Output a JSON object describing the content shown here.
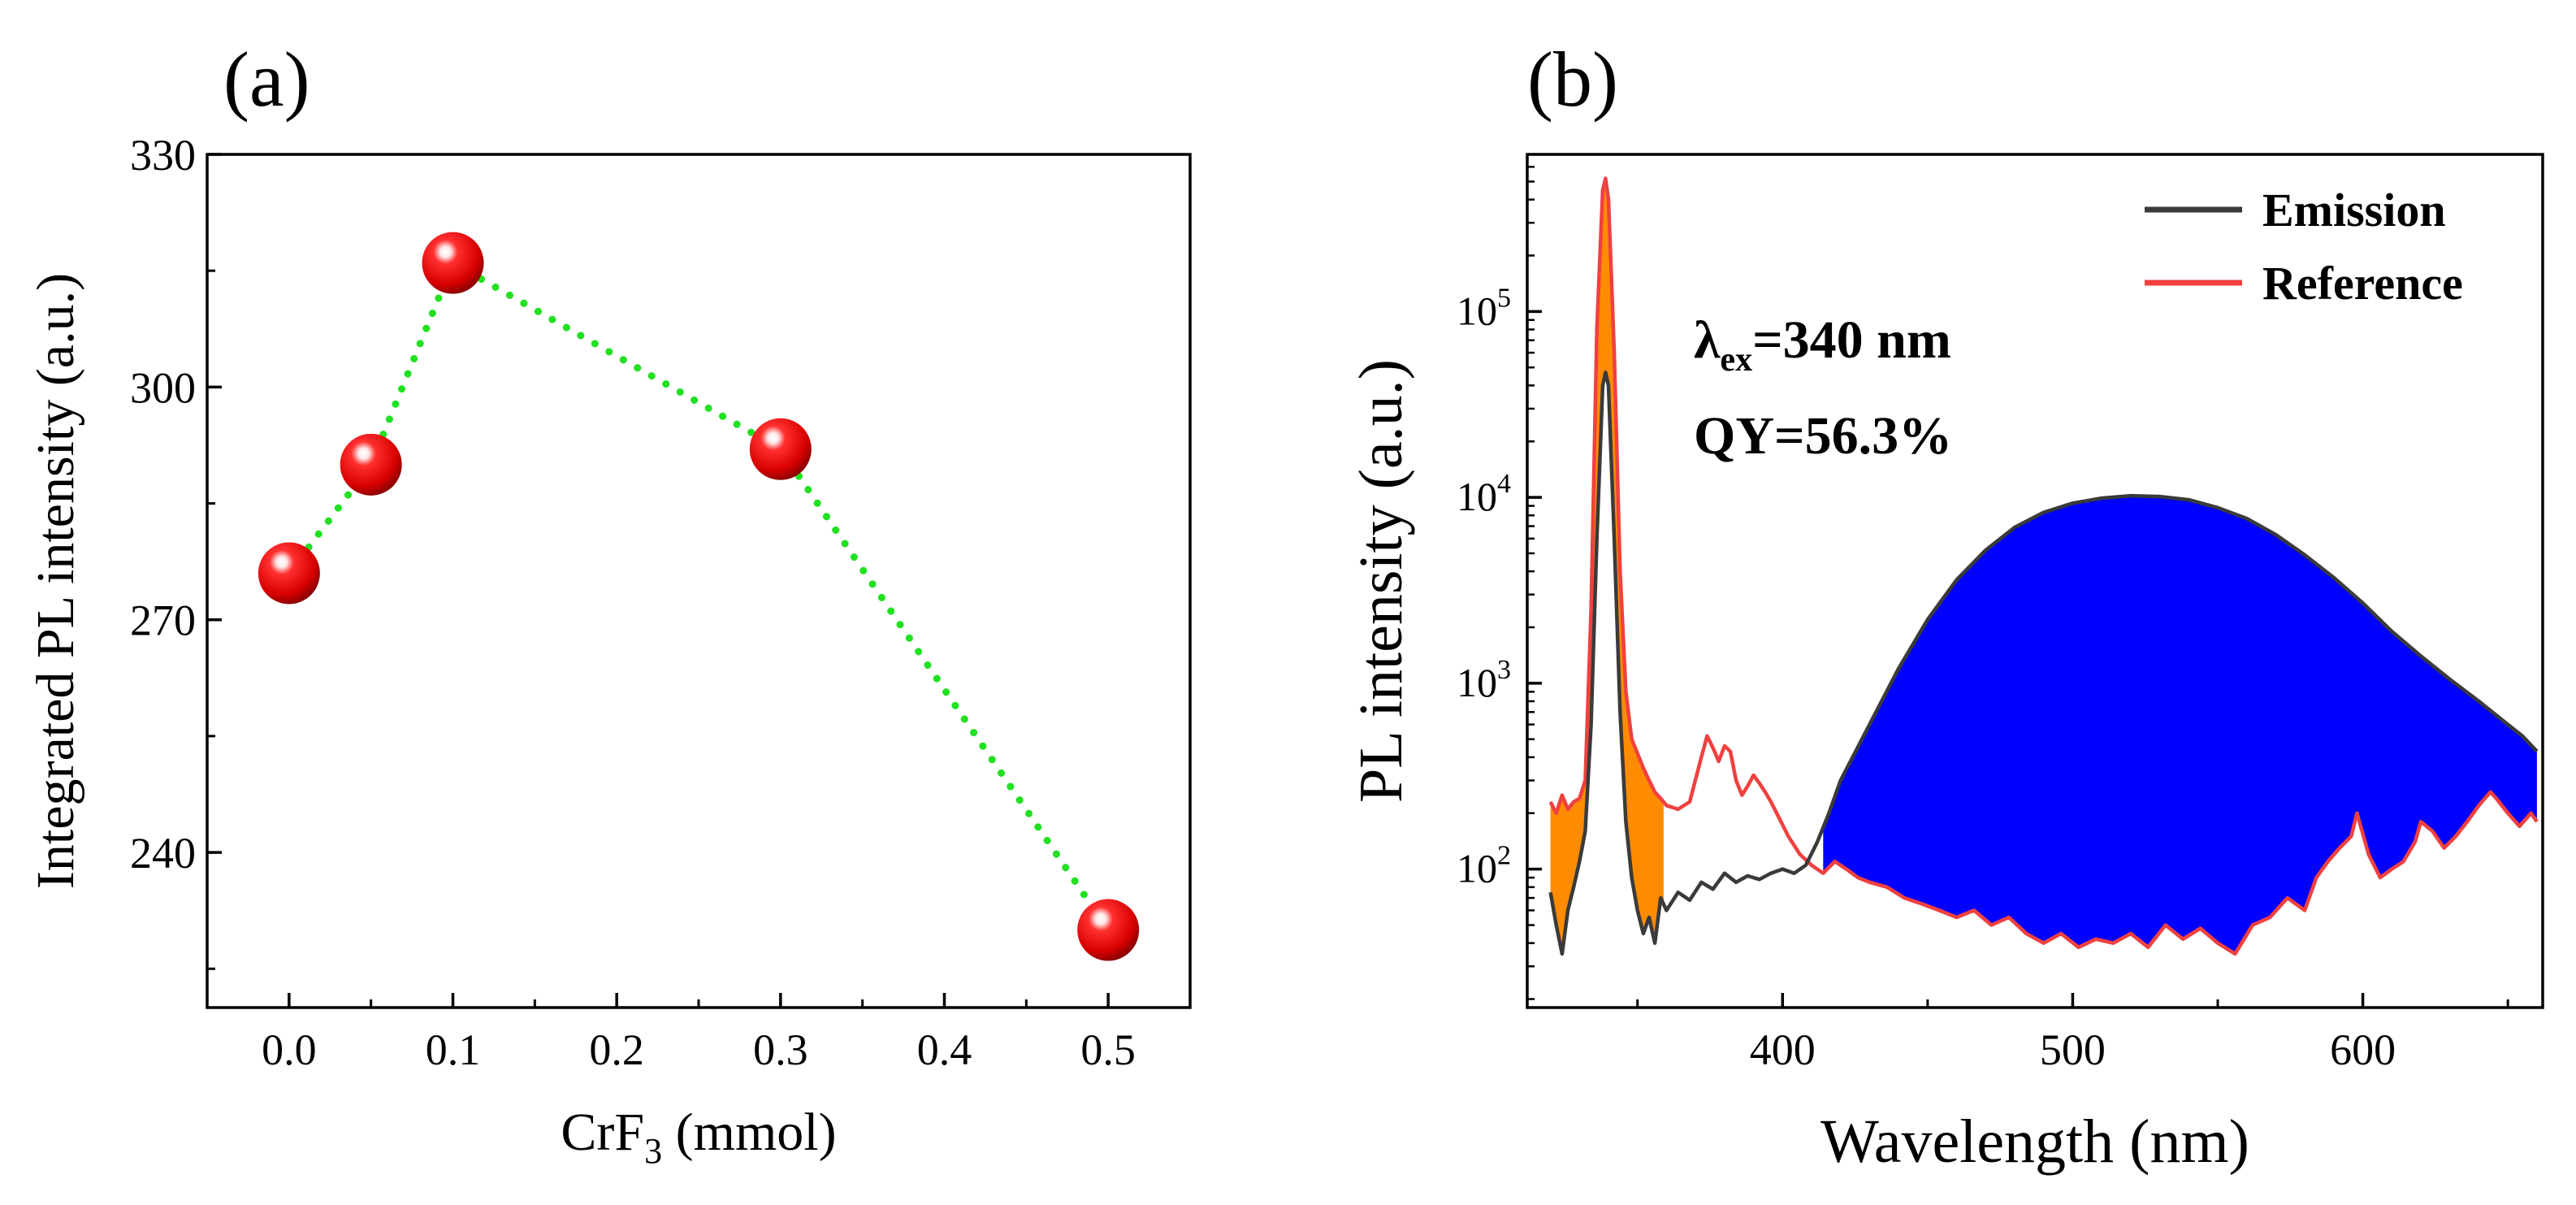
{
  "chart_data": [
    {
      "type": "scatter",
      "panel_label": "(a)",
      "xlabel_main": "CrF",
      "xlabel_sub": "3",
      "xlabel_rest": " (mmol)",
      "ylabel": "Integrated PL intensity (a.u.)",
      "xlim": [
        -0.05,
        0.55
      ],
      "ylim": [
        220,
        330
      ],
      "xticks": [
        0.0,
        0.1,
        0.2,
        0.3,
        0.4,
        0.5
      ],
      "xtick_labels": [
        "0.0",
        "0.1",
        "0.2",
        "0.3",
        "0.4",
        "0.5"
      ],
      "yticks": [
        240,
        270,
        300,
        330
      ],
      "ytick_labels": [
        "240",
        "270",
        "300",
        "330"
      ],
      "x": [
        0.0,
        0.05,
        0.1,
        0.3,
        0.5
      ],
      "y": [
        276,
        290,
        316,
        292,
        230
      ],
      "line_style": "green dotted",
      "marker_color": "#e00000",
      "line_color": "#22e022"
    },
    {
      "type": "line",
      "panel_label": "(b)",
      "xlabel": "Wavelength (nm)",
      "ylabel": "PL intensity (a.u.)",
      "yscale": "log",
      "xlim": [
        312,
        662
      ],
      "ylim": [
        18,
        700000
      ],
      "xticks": [
        400,
        500,
        600
      ],
      "xtick_labels": [
        "400",
        "500",
        "600"
      ],
      "yticks": [
        100,
        1000,
        10000,
        100000
      ],
      "ytick_bases": [
        "10",
        "10",
        "10",
        "10"
      ],
      "ytick_exps": [
        "2",
        "3",
        "4",
        "5"
      ],
      "annotation_lambda": "λ",
      "annotation_lambda_sub": "ex",
      "annotation_lambda_rest": "=340 nm",
      "annotation_qy": "QY=56.3%",
      "legend_position": "top-right",
      "series": [
        {
          "name": "Emission",
          "color": "#3a3a3a",
          "points": [
            [
              320,
              75
            ],
            [
              322,
              50
            ],
            [
              324,
              35
            ],
            [
              326,
              60
            ],
            [
              328,
              80
            ],
            [
              330,
              110
            ],
            [
              332,
              160
            ],
            [
              334,
              600
            ],
            [
              336,
              6000
            ],
            [
              338,
              40000
            ],
            [
              339,
              47000
            ],
            [
              340,
              40000
            ],
            [
              342,
              6000
            ],
            [
              344,
              700
            ],
            [
              346,
              180
            ],
            [
              348,
              90
            ],
            [
              350,
              60
            ],
            [
              352,
              45
            ],
            [
              354,
              55
            ],
            [
              356,
              40
            ],
            [
              358,
              70
            ],
            [
              360,
              60
            ],
            [
              364,
              75
            ],
            [
              368,
              68
            ],
            [
              372,
              85
            ],
            [
              376,
              78
            ],
            [
              380,
              95
            ],
            [
              384,
              85
            ],
            [
              388,
              92
            ],
            [
              392,
              88
            ],
            [
              396,
              95
            ],
            [
              400,
              100
            ],
            [
              404,
              95
            ],
            [
              408,
              105
            ],
            [
              412,
              140
            ],
            [
              416,
              200
            ],
            [
              420,
              300
            ],
            [
              430,
              600
            ],
            [
              440,
              1200
            ],
            [
              450,
              2200
            ],
            [
              460,
              3600
            ],
            [
              470,
              5200
            ],
            [
              480,
              6900
            ],
            [
              490,
              8300
            ],
            [
              500,
              9300
            ],
            [
              510,
              9900
            ],
            [
              520,
              10200
            ],
            [
              530,
              10100
            ],
            [
              540,
              9700
            ],
            [
              550,
              8800
            ],
            [
              560,
              7700
            ],
            [
              570,
              6300
            ],
            [
              580,
              4900
            ],
            [
              590,
              3700
            ],
            [
              600,
              2700
            ],
            [
              610,
              1900
            ],
            [
              620,
              1400
            ],
            [
              630,
              1050
            ],
            [
              640,
              800
            ],
            [
              650,
              600
            ],
            [
              655,
              520
            ],
            [
              660,
              430
            ]
          ]
        },
        {
          "name": "Reference",
          "color": "#f04040",
          "points": [
            [
              320,
              230
            ],
            [
              322,
              200
            ],
            [
              324,
              250
            ],
            [
              326,
              210
            ],
            [
              328,
              230
            ],
            [
              330,
              240
            ],
            [
              332,
              300
            ],
            [
              334,
              2500
            ],
            [
              336,
              80000
            ],
            [
              338,
              450000
            ],
            [
              339,
              520000
            ],
            [
              340,
              400000
            ],
            [
              342,
              60000
            ],
            [
              344,
              4000
            ],
            [
              346,
              900
            ],
            [
              348,
              500
            ],
            [
              350,
              420
            ],
            [
              352,
              350
            ],
            [
              354,
              300
            ],
            [
              356,
              260
            ],
            [
              358,
              240
            ],
            [
              360,
              220
            ],
            [
              364,
              210
            ],
            [
              368,
              230
            ],
            [
              372,
              400
            ],
            [
              374,
              520
            ],
            [
              376,
              450
            ],
            [
              378,
              380
            ],
            [
              380,
              460
            ],
            [
              382,
              430
            ],
            [
              384,
              300
            ],
            [
              386,
              250
            ],
            [
              388,
              280
            ],
            [
              390,
              320
            ],
            [
              392,
              290
            ],
            [
              394,
              260
            ],
            [
              396,
              230
            ],
            [
              398,
              200
            ],
            [
              402,
              150
            ],
            [
              406,
              120
            ],
            [
              410,
              105
            ],
            [
              414,
              95
            ],
            [
              418,
              110
            ],
            [
              422,
              100
            ],
            [
              426,
              90
            ],
            [
              430,
              85
            ],
            [
              436,
              80
            ],
            [
              442,
              70
            ],
            [
              448,
              65
            ],
            [
              454,
              60
            ],
            [
              460,
              55
            ],
            [
              466,
              60
            ],
            [
              472,
              50
            ],
            [
              478,
              55
            ],
            [
              484,
              45
            ],
            [
              490,
              40
            ],
            [
              496,
              45
            ],
            [
              502,
              38
            ],
            [
              508,
              42
            ],
            [
              514,
              40
            ],
            [
              520,
              45
            ],
            [
              526,
              38
            ],
            [
              532,
              50
            ],
            [
              538,
              42
            ],
            [
              544,
              48
            ],
            [
              550,
              40
            ],
            [
              556,
              35
            ],
            [
              562,
              50
            ],
            [
              568,
              55
            ],
            [
              574,
              70
            ],
            [
              580,
              60
            ],
            [
              584,
              90
            ],
            [
              588,
              110
            ],
            [
              592,
              130
            ],
            [
              596,
              150
            ],
            [
              598,
              200
            ],
            [
              602,
              120
            ],
            [
              606,
              90
            ],
            [
              610,
              100
            ],
            [
              614,
              110
            ],
            [
              618,
              140
            ],
            [
              620,
              180
            ],
            [
              624,
              160
            ],
            [
              628,
              130
            ],
            [
              632,
              150
            ],
            [
              636,
              180
            ],
            [
              640,
              220
            ],
            [
              644,
              260
            ],
            [
              646,
              240
            ],
            [
              650,
              200
            ],
            [
              654,
              170
            ],
            [
              658,
              200
            ],
            [
              660,
              180
            ]
          ]
        }
      ]
    }
  ]
}
